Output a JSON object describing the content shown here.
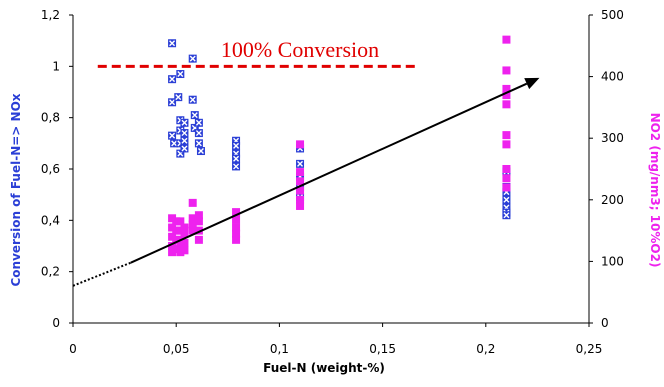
{
  "chart_data": {
    "type": "scatter",
    "title": "",
    "xlabel": "Fuel-N (weight-%)",
    "ylabel_left": "Conversion of Fuel-N=> NOx",
    "ylabel_right": "NO2 (mg/nm3; 10%O2)",
    "xlim": [
      0,
      0.25
    ],
    "ylim_left": [
      0,
      1.2
    ],
    "ylim_right": [
      0,
      500
    ],
    "x_ticks": [
      "0",
      "0,05",
      "0,1",
      "0,15",
      "0,2",
      "0,25"
    ],
    "y_left_ticks": [
      "0",
      "0,2",
      "0,4",
      "0,6",
      "0,8",
      "1",
      "1,2"
    ],
    "y_right_ticks": [
      "0",
      "100",
      "200",
      "300",
      "400",
      "500"
    ],
    "colors": {
      "conversion": "#2b3fd6",
      "no2": "#ee22ee",
      "annotation": "#e00000",
      "arrow": "#000000"
    },
    "annotation": {
      "text": "100% Conversion",
      "y_left": 1.0,
      "x_range": [
        0.012,
        0.168
      ]
    },
    "trend_arrow": {
      "x_start": 0.028,
      "y_start_left": 0.235,
      "x_end": 0.226,
      "y_end_left": 0.955
    },
    "trend_dotted": {
      "x_start": 0.0,
      "y_start_left": 0.145,
      "x_end": 0.028,
      "y_end_left": 0.235
    },
    "series": [
      {
        "name": "Conversion of Fuel-N=> NOx",
        "axis": "left",
        "marker": "square-x",
        "points": [
          [
            0.048,
            1.09
          ],
          [
            0.048,
            0.95
          ],
          [
            0.048,
            0.86
          ],
          [
            0.048,
            0.73
          ],
          [
            0.049,
            0.7
          ],
          [
            0.051,
            0.88
          ],
          [
            0.052,
            0.97
          ],
          [
            0.052,
            0.79
          ],
          [
            0.052,
            0.75
          ],
          [
            0.052,
            0.7
          ],
          [
            0.052,
            0.66
          ],
          [
            0.054,
            0.78
          ],
          [
            0.054,
            0.74
          ],
          [
            0.054,
            0.71
          ],
          [
            0.054,
            0.68
          ],
          [
            0.058,
            1.03
          ],
          [
            0.058,
            0.87
          ],
          [
            0.059,
            0.81
          ],
          [
            0.059,
            0.76
          ],
          [
            0.061,
            0.78
          ],
          [
            0.061,
            0.74
          ],
          [
            0.061,
            0.7
          ],
          [
            0.062,
            0.67
          ],
          [
            0.079,
            0.71
          ],
          [
            0.079,
            0.69
          ],
          [
            0.079,
            0.66
          ],
          [
            0.079,
            0.64
          ],
          [
            0.079,
            0.61
          ],
          [
            0.11,
            0.68
          ],
          [
            0.11,
            0.62
          ],
          [
            0.11,
            0.57
          ],
          [
            0.11,
            0.53
          ],
          [
            0.11,
            0.49
          ],
          [
            0.21,
            0.59
          ],
          [
            0.21,
            0.53
          ],
          [
            0.21,
            0.51
          ],
          [
            0.21,
            0.48
          ],
          [
            0.21,
            0.45
          ],
          [
            0.21,
            0.43
          ],
          [
            0.21,
            0.42
          ]
        ]
      },
      {
        "name": "NO2 (mg/nm3; 10%O2)",
        "axis": "right",
        "marker": "square",
        "points": [
          [
            0.048,
            170
          ],
          [
            0.048,
            155
          ],
          [
            0.048,
            140
          ],
          [
            0.048,
            125
          ],
          [
            0.048,
            115
          ],
          [
            0.05,
            165
          ],
          [
            0.05,
            150
          ],
          [
            0.05,
            135
          ],
          [
            0.05,
            120
          ],
          [
            0.052,
            165
          ],
          [
            0.052,
            150
          ],
          [
            0.052,
            135
          ],
          [
            0.052,
            125
          ],
          [
            0.052,
            115
          ],
          [
            0.054,
            155
          ],
          [
            0.054,
            145
          ],
          [
            0.054,
            130
          ],
          [
            0.054,
            118
          ],
          [
            0.058,
            195
          ],
          [
            0.058,
            170
          ],
          [
            0.058,
            160
          ],
          [
            0.058,
            150
          ],
          [
            0.061,
            175
          ],
          [
            0.061,
            165
          ],
          [
            0.061,
            150
          ],
          [
            0.061,
            135
          ],
          [
            0.079,
            180
          ],
          [
            0.079,
            168
          ],
          [
            0.079,
            155
          ],
          [
            0.079,
            145
          ],
          [
            0.079,
            135
          ],
          [
            0.11,
            290
          ],
          [
            0.11,
            245
          ],
          [
            0.11,
            230
          ],
          [
            0.11,
            215
          ],
          [
            0.11,
            200
          ],
          [
            0.11,
            190
          ],
          [
            0.21,
            460
          ],
          [
            0.21,
            410
          ],
          [
            0.21,
            380
          ],
          [
            0.21,
            370
          ],
          [
            0.21,
            355
          ],
          [
            0.21,
            305
          ],
          [
            0.21,
            290
          ],
          [
            0.21,
            250
          ],
          [
            0.21,
            235
          ],
          [
            0.21,
            220
          ]
        ]
      }
    ]
  }
}
